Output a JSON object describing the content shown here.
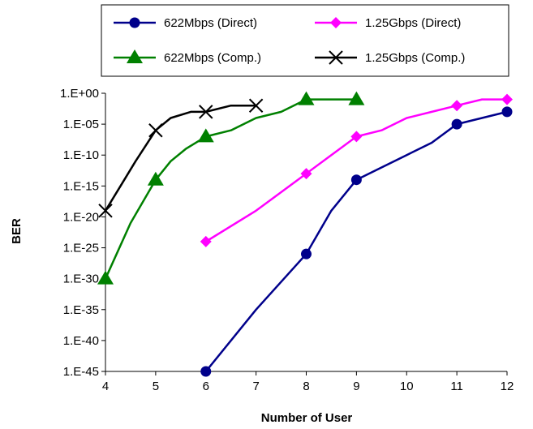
{
  "chart_data": {
    "type": "line",
    "xlabel": "Number of User",
    "ylabel": "BER",
    "x_ticks": [
      "4",
      "5",
      "6",
      "7",
      "8",
      "9",
      "10",
      "11",
      "12"
    ],
    "y_ticks": [
      "1.E+00",
      "1.E-05",
      "1.E-10",
      "1.E-15",
      "1.E-20",
      "1.E-25",
      "1.E-30",
      "1.E-35",
      "1.E-40",
      "1.E-45"
    ],
    "xlim": [
      4,
      12
    ],
    "y_scale": "log",
    "y_exp_range": [
      -45,
      0
    ],
    "grid": false,
    "legend_position": "top",
    "series": [
      {
        "name": "622Mbps (Direct)",
        "color": "#00008B",
        "marker": "circle",
        "points": [
          {
            "x": 6,
            "y": "1E-45"
          },
          {
            "x": 8,
            "y": "1E-26"
          },
          {
            "x": 9,
            "y": "1E-14"
          },
          {
            "x": 11,
            "y": "1E-05"
          },
          {
            "x": 12,
            "y": "1E-03"
          }
        ],
        "curve": [
          {
            "x": 6,
            "y": "1E-45"
          },
          {
            "x": 7,
            "y": "1E-35"
          },
          {
            "x": 8,
            "y": "1E-26"
          },
          {
            "x": 8.5,
            "y": "1E-19"
          },
          {
            "x": 9,
            "y": "1E-14"
          },
          {
            "x": 9.5,
            "y": "1E-12"
          },
          {
            "x": 10,
            "y": "1E-10"
          },
          {
            "x": 10.5,
            "y": "1E-08"
          },
          {
            "x": 11,
            "y": "1E-05"
          },
          {
            "x": 11.5,
            "y": "1E-04"
          },
          {
            "x": 12,
            "y": "1E-03"
          }
        ]
      },
      {
        "name": "1.25Gbps (Direct)",
        "color": "#FF00FF",
        "marker": "diamond",
        "points": [
          {
            "x": 6,
            "y": "1E-24"
          },
          {
            "x": 8,
            "y": "1E-13"
          },
          {
            "x": 9,
            "y": "1E-07"
          },
          {
            "x": 11,
            "y": "1E-02"
          },
          {
            "x": 12,
            "y": "1E-01"
          }
        ],
        "curve": [
          {
            "x": 6,
            "y": "1E-24"
          },
          {
            "x": 7,
            "y": "1E-19"
          },
          {
            "x": 8,
            "y": "1E-13"
          },
          {
            "x": 8.5,
            "y": "1E-10"
          },
          {
            "x": 9,
            "y": "1E-07"
          },
          {
            "x": 9.5,
            "y": "1E-06"
          },
          {
            "x": 10,
            "y": "1E-04"
          },
          {
            "x": 10.5,
            "y": "1E-03"
          },
          {
            "x": 11,
            "y": "1E-02"
          },
          {
            "x": 11.5,
            "y": "1E-01"
          },
          {
            "x": 12,
            "y": "1E-01"
          }
        ]
      },
      {
        "name": "622Mbps (Comp.)",
        "color": "#008000",
        "marker": "triangle",
        "points": [
          {
            "x": 4,
            "y": "1E-30"
          },
          {
            "x": 5,
            "y": "1E-14"
          },
          {
            "x": 6,
            "y": "1E-07"
          },
          {
            "x": 8,
            "y": "1E-01"
          },
          {
            "x": 9,
            "y": "1E-01"
          }
        ],
        "curve": [
          {
            "x": 4,
            "y": "1E-30"
          },
          {
            "x": 4.5,
            "y": "1E-21"
          },
          {
            "x": 5,
            "y": "1E-14"
          },
          {
            "x": 5.3,
            "y": "1E-11"
          },
          {
            "x": 5.6,
            "y": "1E-09"
          },
          {
            "x": 6,
            "y": "1E-07"
          },
          {
            "x": 6.5,
            "y": "1E-06"
          },
          {
            "x": 7,
            "y": "1E-04"
          },
          {
            "x": 7.5,
            "y": "1E-03"
          },
          {
            "x": 8,
            "y": "1E-01"
          },
          {
            "x": 8.3,
            "y": "1E-01"
          },
          {
            "x": 9,
            "y": "1E-01"
          }
        ]
      },
      {
        "name": "1.25Gbps (Comp.)",
        "color": "#000000",
        "marker": "x",
        "points": [
          {
            "x": 4,
            "y": "1E-19"
          },
          {
            "x": 5,
            "y": "1E-06"
          },
          {
            "x": 6,
            "y": "1E-03"
          },
          {
            "x": 7,
            "y": "1E-02"
          }
        ],
        "curve": [
          {
            "x": 4,
            "y": "1E-19"
          },
          {
            "x": 4.3,
            "y": "1E-15"
          },
          {
            "x": 4.6,
            "y": "1E-11"
          },
          {
            "x": 5,
            "y": "1E-06"
          },
          {
            "x": 5.3,
            "y": "1E-04"
          },
          {
            "x": 5.7,
            "y": "1E-03"
          },
          {
            "x": 6,
            "y": "1E-03"
          },
          {
            "x": 6.5,
            "y": "1E-02"
          },
          {
            "x": 7,
            "y": "1E-02"
          }
        ]
      }
    ]
  }
}
